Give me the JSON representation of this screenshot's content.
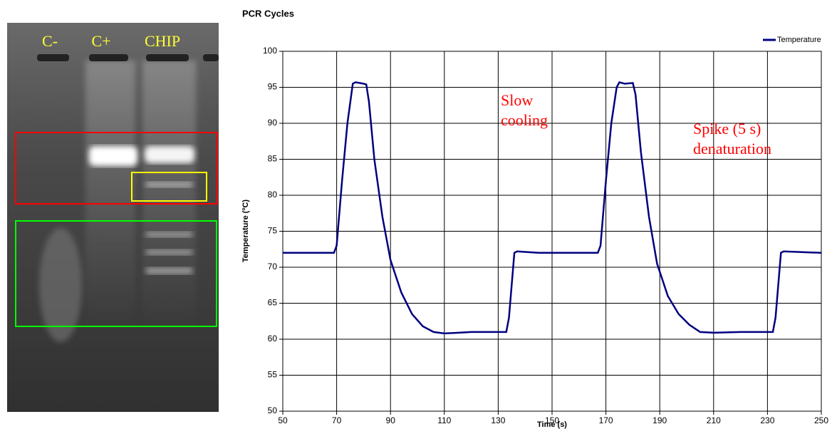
{
  "gel_labels": [
    "C-",
    "C+",
    "CHIP"
  ],
  "chart_data": {
    "type": "line",
    "title": "PCR Cycles",
    "x_label": "Time (s)",
    "y_label": "Temperature (ºC)",
    "x": [
      50,
      69,
      70,
      72,
      74,
      76,
      77,
      80,
      81,
      82,
      84,
      87,
      90,
      94,
      98,
      102,
      106,
      110,
      120,
      130,
      133,
      134,
      136,
      137,
      145,
      167,
      168,
      170,
      172,
      174,
      175,
      177,
      180,
      181,
      183,
      186,
      189,
      193,
      197,
      201,
      205,
      210,
      220,
      232,
      233,
      235,
      236,
      250
    ],
    "series": [
      {
        "name": "Temperature",
        "color": "#000080",
        "values": [
          72,
          72,
          73,
          82,
          90,
          95.5,
          95.7,
          95.5,
          95.4,
          93,
          85,
          77,
          71,
          66.5,
          63.5,
          61.8,
          61,
          60.8,
          61,
          61,
          61,
          63,
          72,
          72.2,
          72,
          72,
          73,
          82,
          90,
          95,
          95.7,
          95.5,
          95.6,
          94,
          86,
          77,
          70.5,
          66,
          63.5,
          62,
          61,
          60.9,
          61,
          61,
          63,
          72,
          72.2,
          72
        ]
      }
    ],
    "xlim": [
      50,
      250
    ],
    "xticks": [
      50,
      70,
      90,
      110,
      130,
      150,
      170,
      190,
      210,
      230,
      250
    ],
    "ylim": [
      50,
      100
    ],
    "yticks": [
      50,
      55,
      60,
      65,
      70,
      75,
      80,
      85,
      90,
      95,
      100
    ],
    "grid": true,
    "legend": "top-right",
    "annotations": [
      [
        "Slow",
        "cooling"
      ],
      [
        "Spike  (5 s)",
        "denaturation"
      ]
    ]
  }
}
